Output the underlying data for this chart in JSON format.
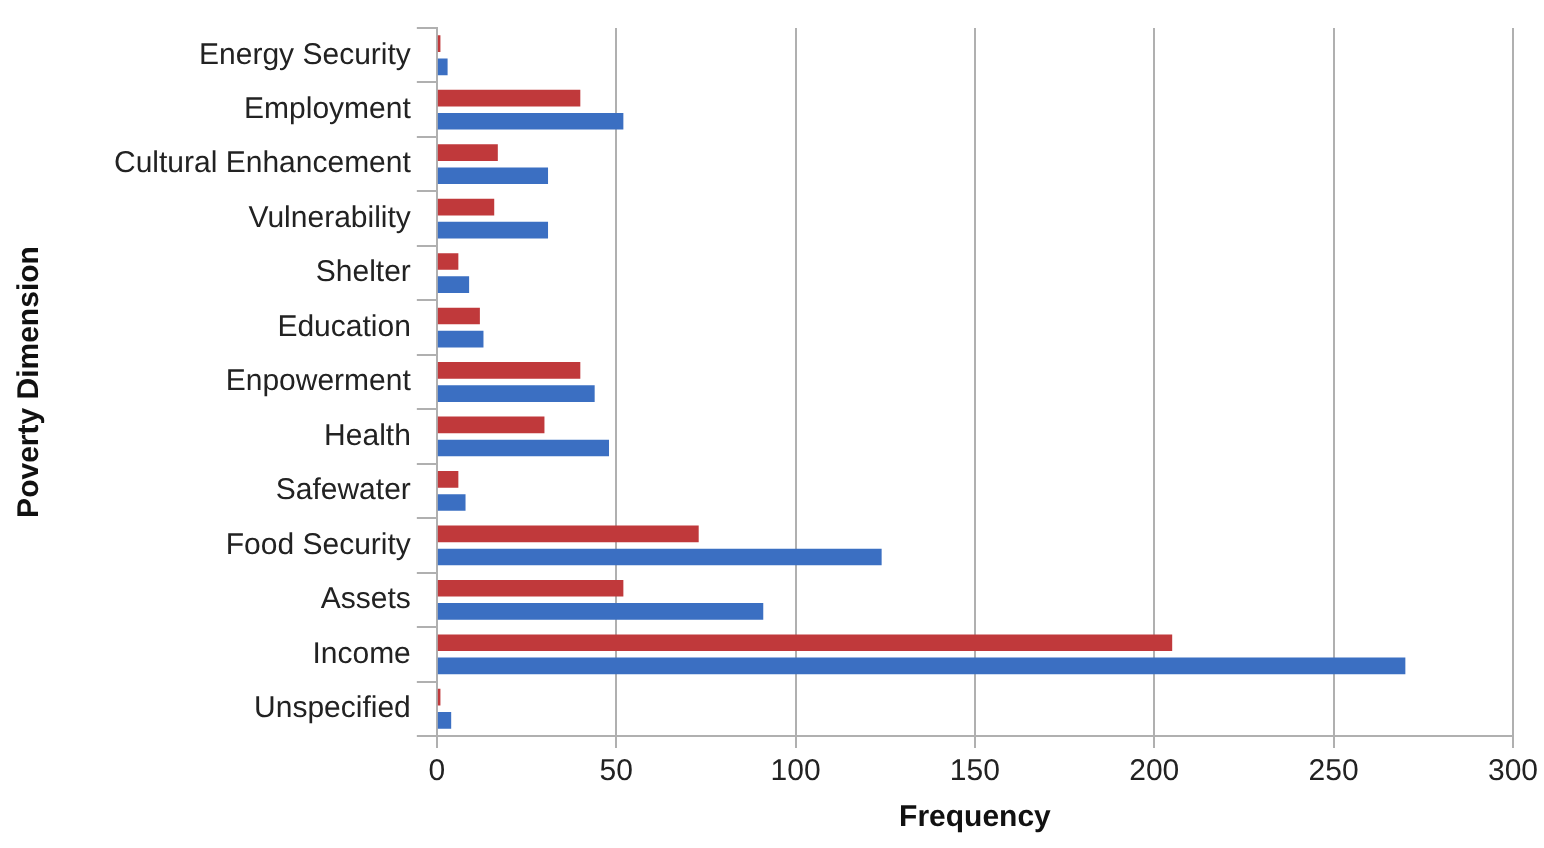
{
  "chart_data": {
    "type": "bar",
    "orientation": "horizontal",
    "xlabel": "Frequency",
    "ylabel": "Poverty Dimension",
    "categories": [
      "Energy Security",
      "Employment",
      "Cultural Enhancement",
      "Vulnerability",
      "Shelter",
      "Education",
      "Enpowerment",
      "Health",
      "Safewater",
      "Food Security",
      "Assets",
      "Income",
      "Unspecified"
    ],
    "series": [
      {
        "color": "#c0393b",
        "values": [
          1,
          40,
          17,
          16,
          6,
          12,
          40,
          30,
          6,
          73,
          52,
          205,
          1
        ]
      },
      {
        "color": "#3b6fc2",
        "values": [
          3,
          52,
          31,
          31,
          9,
          13,
          44,
          48,
          8,
          124,
          91,
          270,
          4
        ]
      }
    ],
    "xlim": [
      0,
      300
    ],
    "xticks": [
      0,
      50,
      100,
      150,
      200,
      250,
      300
    ],
    "grid": "x",
    "legend": false
  }
}
